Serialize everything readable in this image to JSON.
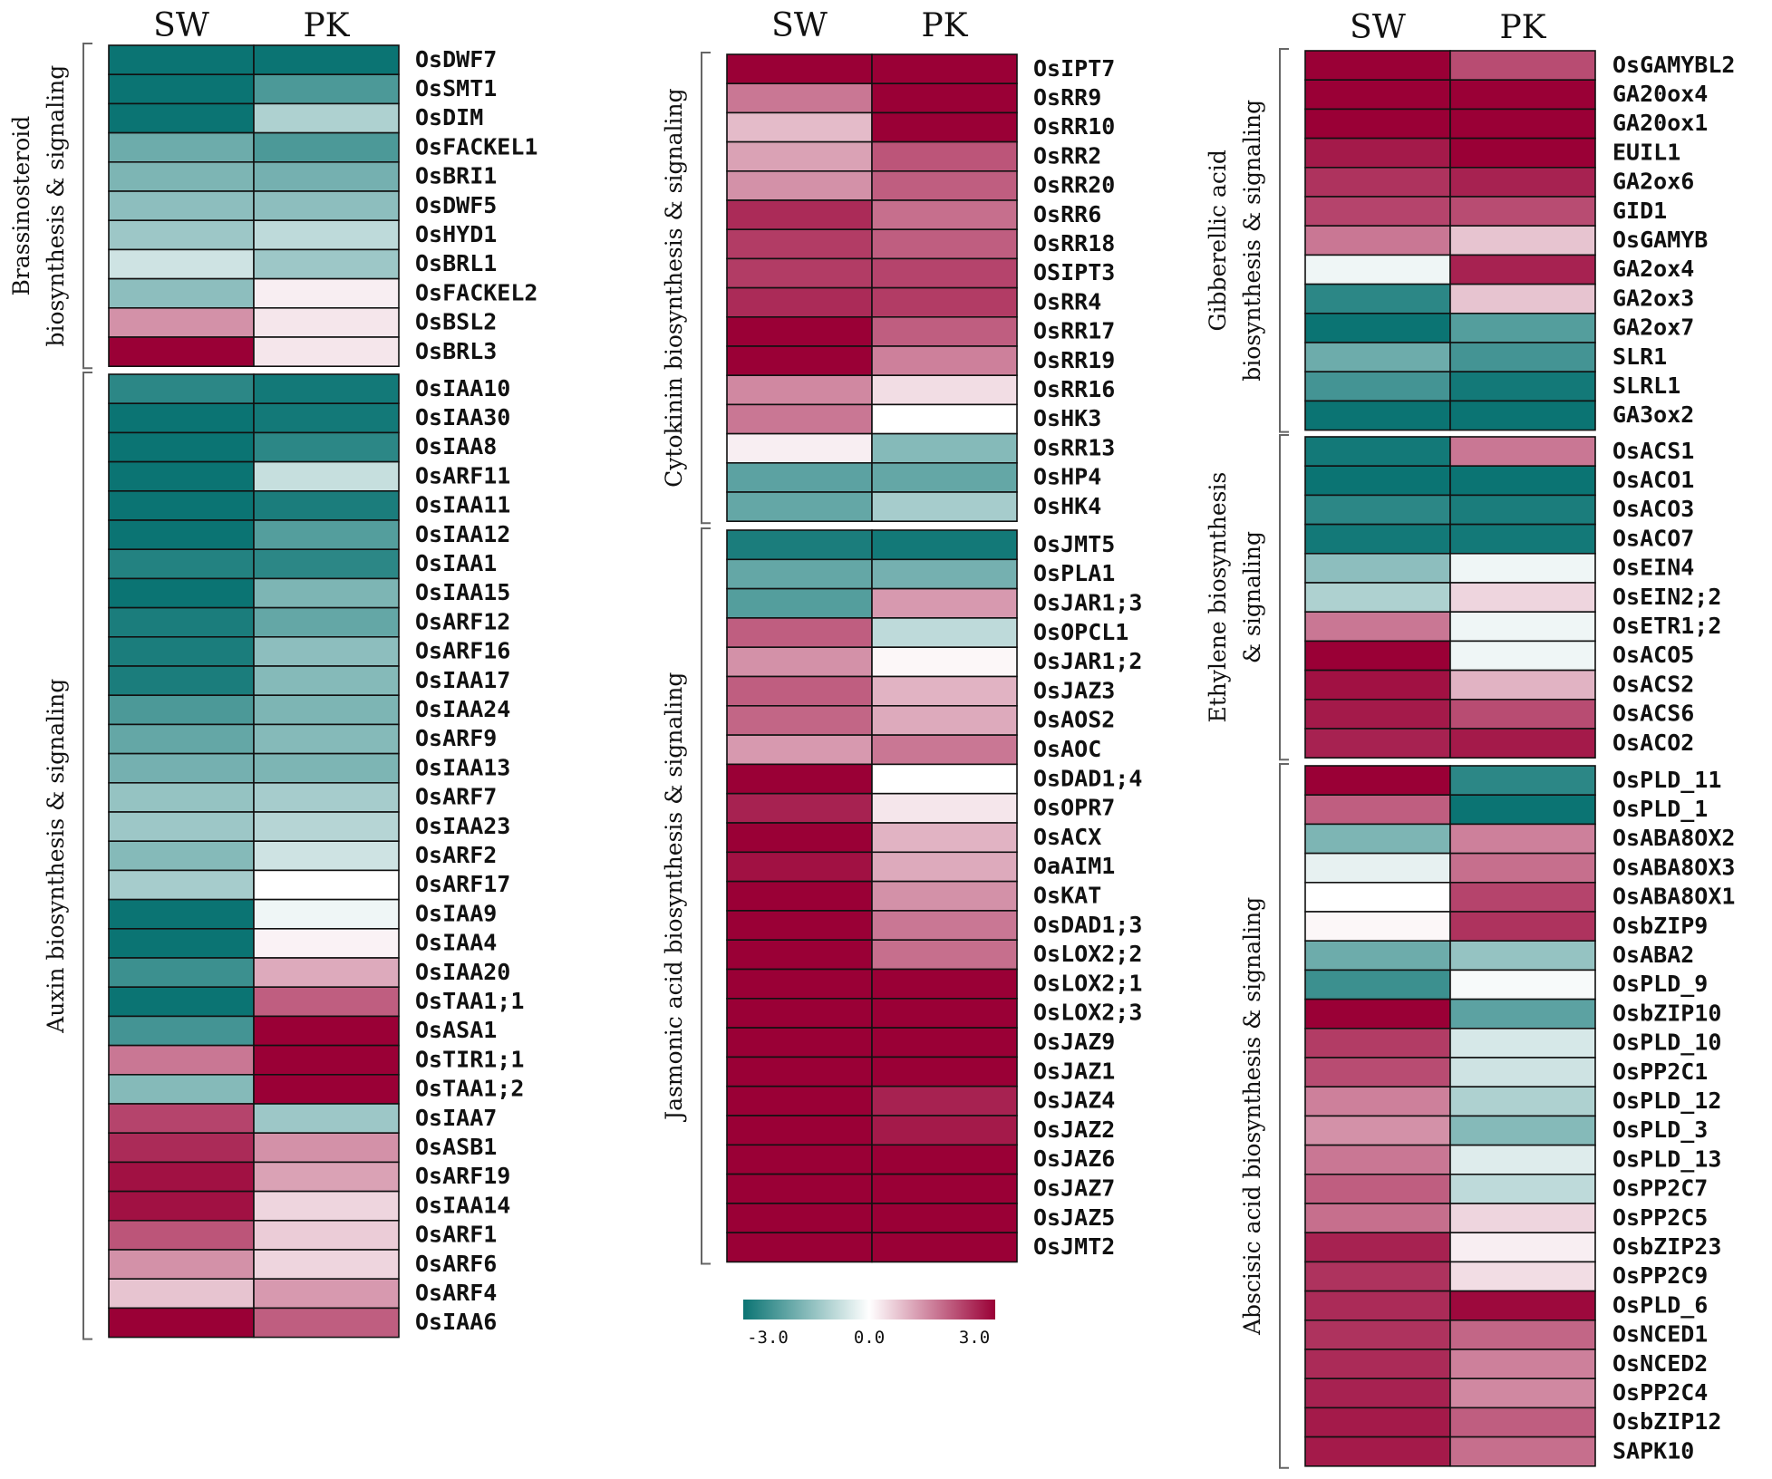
{
  "chart_data": {
    "type": "heatmap",
    "columns": [
      "SW",
      "PK"
    ],
    "color_scale": {
      "min": -3.0,
      "max": 3.0,
      "low": "#0b7473",
      "mid": "#ffffff",
      "high": "#9a0036",
      "ticks": [
        "-3.0",
        "0.0",
        "3.0"
      ]
    },
    "panels": [
      {
        "groups": [
          {
            "label_lines": [
              "Brassinosteroid",
              "biosynthesis & signaling"
            ],
            "rows": [
              {
                "gene": "OsDWF7",
                "SW": -3.0,
                "PK": -3.0
              },
              {
                "gene": "OsSMT1",
                "SW": -3.0,
                "PK": -2.2
              },
              {
                "gene": "OsDIM",
                "SW": -3.0,
                "PK": -1.0
              },
              {
                "gene": "OsFACKEL1",
                "SW": -1.8,
                "PK": -2.2
              },
              {
                "gene": "OsBRI1",
                "SW": -1.6,
                "PK": -1.7
              },
              {
                "gene": "OsDWF5",
                "SW": -1.4,
                "PK": -1.4
              },
              {
                "gene": "OsHYD1",
                "SW": -1.2,
                "PK": -0.8
              },
              {
                "gene": "OsBRL1",
                "SW": -0.6,
                "PK": -1.2
              },
              {
                "gene": "OsFACKEL2",
                "SW": -1.4,
                "PK": 0.2
              },
              {
                "gene": "OsBSL2",
                "SW": 1.3,
                "PK": 0.3
              },
              {
                "gene": "OsBRL3",
                "SW": 3.0,
                "PK": 0.3
              }
            ]
          },
          {
            "label_lines": [
              "Auxin biosynthesis & signaling"
            ],
            "rows": [
              {
                "gene": "OsIAA10",
                "SW": -2.6,
                "PK": -2.9
              },
              {
                "gene": "OsIAA30",
                "SW": -3.0,
                "PK": -2.9
              },
              {
                "gene": "OsIAA8",
                "SW": -3.0,
                "PK": -2.6
              },
              {
                "gene": "OsARF11",
                "SW": -3.0,
                "PK": -0.7
              },
              {
                "gene": "OsIAA11",
                "SW": -3.0,
                "PK": -2.8
              },
              {
                "gene": "OsIAA12",
                "SW": -3.0,
                "PK": -2.1
              },
              {
                "gene": "OsIAA1",
                "SW": -2.7,
                "PK": -2.6
              },
              {
                "gene": "OsIAA15",
                "SW": -3.0,
                "PK": -1.6
              },
              {
                "gene": "OsARF12",
                "SW": -2.8,
                "PK": -1.9
              },
              {
                "gene": "OsARF16",
                "SW": -2.8,
                "PK": -1.4
              },
              {
                "gene": "OsIAA17",
                "SW": -2.8,
                "PK": -1.5
              },
              {
                "gene": "OsIAA24",
                "SW": -2.2,
                "PK": -1.6
              },
              {
                "gene": "OsARF9",
                "SW": -1.9,
                "PK": -1.5
              },
              {
                "gene": "OsIAA13",
                "SW": -1.7,
                "PK": -1.6
              },
              {
                "gene": "OsARF7",
                "SW": -1.3,
                "PK": -1.1
              },
              {
                "gene": "OsIAA23",
                "SW": -1.2,
                "PK": -0.9
              },
              {
                "gene": "OsARF2",
                "SW": -1.5,
                "PK": -0.6
              },
              {
                "gene": "OsARF17",
                "SW": -1.1,
                "PK": 0.0
              },
              {
                "gene": "OsIAA9",
                "SW": -3.0,
                "PK": -0.2
              },
              {
                "gene": "OsIAA4",
                "SW": -3.0,
                "PK": 0.15
              },
              {
                "gene": "OsIAA20",
                "SW": -2.4,
                "PK": 1.0
              },
              {
                "gene": "OsTAA1;1",
                "SW": -3.0,
                "PK": 1.9
              },
              {
                "gene": "OsASA1",
                "SW": -2.3,
                "PK": 3.0
              },
              {
                "gene": "OsTIR1;1",
                "SW": 1.6,
                "PK": 3.0
              },
              {
                "gene": "OsTAA1;2",
                "SW": -1.5,
                "PK": 3.0
              },
              {
                "gene": "OsIAA7",
                "SW": 2.2,
                "PK": -1.2
              },
              {
                "gene": "OsASB1",
                "SW": 2.5,
                "PK": 1.3
              },
              {
                "gene": "OsARF19",
                "SW": 2.8,
                "PK": 1.1
              },
              {
                "gene": "OsIAA14",
                "SW": 2.8,
                "PK": 0.5
              },
              {
                "gene": "OsARF1",
                "SW": 2.0,
                "PK": 0.6
              },
              {
                "gene": "OsARF6",
                "SW": 1.3,
                "PK": 0.5
              },
              {
                "gene": "OsARF4",
                "SW": 0.7,
                "PK": 1.2
              },
              {
                "gene": "OsIAA6",
                "SW": 3.0,
                "PK": 1.9
              }
            ]
          }
        ]
      },
      {
        "groups": [
          {
            "label_lines": [
              "Cytokinin biosynthesis & signaling"
            ],
            "rows": [
              {
                "gene": "OsIPT7",
                "SW": 3.0,
                "PK": 3.0
              },
              {
                "gene": "OsRR9",
                "SW": 1.6,
                "PK": 3.0
              },
              {
                "gene": "OsRR10",
                "SW": 0.8,
                "PK": 3.0
              },
              {
                "gene": "OsRR2",
                "SW": 1.1,
                "PK": 2.0
              },
              {
                "gene": "OsRR20",
                "SW": 1.3,
                "PK": 1.9
              },
              {
                "gene": "OsRR6",
                "SW": 2.5,
                "PK": 1.7
              },
              {
                "gene": "OsRR18",
                "SW": 2.3,
                "PK": 1.9
              },
              {
                "gene": "OSIPT3",
                "SW": 2.3,
                "PK": 2.2
              },
              {
                "gene": "OsRR4",
                "SW": 2.5,
                "PK": 2.3
              },
              {
                "gene": "OsRR17",
                "SW": 3.0,
                "PK": 1.9
              },
              {
                "gene": "OsRR19",
                "SW": 3.0,
                "PK": 1.5
              },
              {
                "gene": "OsRR16",
                "SW": 1.4,
                "PK": 0.4
              },
              {
                "gene": "OsHK3",
                "SW": 1.6,
                "PK": 0.0
              },
              {
                "gene": "OsRR13",
                "SW": 0.2,
                "PK": -1.5
              },
              {
                "gene": "OsHP4",
                "SW": -2.0,
                "PK": -1.9
              },
              {
                "gene": "OsHK4",
                "SW": -1.9,
                "PK": -1.1
              }
            ]
          },
          {
            "label_lines": [
              "Jasmonic acid biosynthesis & signaling"
            ],
            "rows": [
              {
                "gene": "OsJMT5",
                "SW": -2.8,
                "PK": -2.9
              },
              {
                "gene": "OsPLA1",
                "SW": -1.9,
                "PK": -1.7
              },
              {
                "gene": "OsJAR1;3",
                "SW": -2.1,
                "PK": 1.2
              },
              {
                "gene": "OsOPCL1",
                "SW": 1.9,
                "PK": -0.8
              },
              {
                "gene": "OsJAR1;2",
                "SW": 1.3,
                "PK": 0.1
              },
              {
                "gene": "OsJAZ3",
                "SW": 1.9,
                "PK": 0.9
              },
              {
                "gene": "OsAOS2",
                "SW": 1.8,
                "PK": 1.0
              },
              {
                "gene": "OsAOC",
                "SW": 1.2,
                "PK": 1.6
              },
              {
                "gene": "OsDAD1;4",
                "SW": 3.0,
                "PK": 0.0
              },
              {
                "gene": "OsOPR7",
                "SW": 2.6,
                "PK": 0.3
              },
              {
                "gene": "OsACX",
                "SW": 3.0,
                "PK": 0.9
              },
              {
                "gene": "OaAIM1",
                "SW": 2.8,
                "PK": 1.0
              },
              {
                "gene": "OsKAT",
                "SW": 3.0,
                "PK": 1.3
              },
              {
                "gene": "OsDAD1;3",
                "SW": 3.0,
                "PK": 1.6
              },
              {
                "gene": "OsLOX2;2",
                "SW": 3.0,
                "PK": 1.7
              },
              {
                "gene": "OsLOX2;1",
                "SW": 3.0,
                "PK": 3.0
              },
              {
                "gene": "OsLOX2;3",
                "SW": 3.0,
                "PK": 3.0
              },
              {
                "gene": "OsJAZ9",
                "SW": 3.0,
                "PK": 3.0
              },
              {
                "gene": "OsJAZ1",
                "SW": 3.0,
                "PK": 3.0
              },
              {
                "gene": "OsJAZ4",
                "SW": 3.0,
                "PK": 2.6
              },
              {
                "gene": "OsJAZ2",
                "SW": 3.0,
                "PK": 2.7
              },
              {
                "gene": "OsJAZ6",
                "SW": 3.0,
                "PK": 3.0
              },
              {
                "gene": "OsJAZ7",
                "SW": 3.0,
                "PK": 3.0
              },
              {
                "gene": "OsJAZ5",
                "SW": 3.0,
                "PK": 3.0
              },
              {
                "gene": "OsJMT2",
                "SW": 3.0,
                "PK": 3.0
              }
            ]
          }
        ]
      },
      {
        "groups": [
          {
            "label_lines": [
              "Gibberellic acid",
              "biosynthesis & signaling"
            ],
            "rows": [
              {
                "gene": "OsGAMYBL2",
                "SW": 3.0,
                "PK": 2.1
              },
              {
                "gene": "GA20ox4",
                "SW": 3.0,
                "PK": 3.0
              },
              {
                "gene": "GA20ox1",
                "SW": 3.0,
                "PK": 3.0
              },
              {
                "gene": "EUIL1",
                "SW": 2.7,
                "PK": 3.0
              },
              {
                "gene": "GA2ox6",
                "SW": 2.4,
                "PK": 2.6
              },
              {
                "gene": "GID1",
                "SW": 2.2,
                "PK": 2.1
              },
              {
                "gene": "OsGAMYB",
                "SW": 1.6,
                "PK": 0.7
              },
              {
                "gene": "GA2ox4",
                "SW": -0.2,
                "PK": 2.6
              },
              {
                "gene": "GA2ox3",
                "SW": -2.6,
                "PK": 0.7
              },
              {
                "gene": "GA2ox7",
                "SW": -3.0,
                "PK": -2.1
              },
              {
                "gene": "SLR1",
                "SW": -1.8,
                "PK": -2.3
              },
              {
                "gene": "SLRL1",
                "SW": -2.3,
                "PK": -2.9
              },
              {
                "gene": "GA3ox2",
                "SW": -3.0,
                "PK": -3.0
              }
            ]
          },
          {
            "label_lines": [
              "Ethylene biosynthesis",
              "& signaling"
            ],
            "rows": [
              {
                "gene": "OsACS1",
                "SW": -2.9,
                "PK": 1.6
              },
              {
                "gene": "OsACO1",
                "SW": -3.0,
                "PK": -3.0
              },
              {
                "gene": "OsACO3",
                "SW": -2.6,
                "PK": -2.8
              },
              {
                "gene": "OsACO7",
                "SW": -2.9,
                "PK": -2.9
              },
              {
                "gene": "OsEIN4",
                "SW": -1.4,
                "PK": -0.2
              },
              {
                "gene": "OsEIN2;2",
                "SW": -1.0,
                "PK": 0.5
              },
              {
                "gene": "OsETR1;2",
                "SW": 1.6,
                "PK": -0.2
              },
              {
                "gene": "OsACO5",
                "SW": 3.0,
                "PK": -0.2
              },
              {
                "gene": "OsACS2",
                "SW": 2.8,
                "PK": 0.9
              },
              {
                "gene": "OsACS6",
                "SW": 2.7,
                "PK": 2.1
              },
              {
                "gene": "OsACO2",
                "SW": 2.6,
                "PK": 2.7
              }
            ]
          },
          {
            "label_lines": [
              "Abscisic acid biosynthesis & signaling"
            ],
            "rows": [
              {
                "gene": "OsPLD_11",
                "SW": 3.0,
                "PK": -2.6
              },
              {
                "gene": "OsPLD_1",
                "SW": 1.9,
                "PK": -3.0
              },
              {
                "gene": "OsABA8OX2",
                "SW": -1.6,
                "PK": 1.5
              },
              {
                "gene": "OsABA8OX3",
                "SW": -0.3,
                "PK": 1.7
              },
              {
                "gene": "OsABA8OX1",
                "SW": 0.0,
                "PK": 2.2
              },
              {
                "gene": "OsbZIP9",
                "SW": 0.1,
                "PK": 2.4
              },
              {
                "gene": "OsABA2",
                "SW": -1.8,
                "PK": -1.3
              },
              {
                "gene": "OsPLD_9",
                "SW": -2.4,
                "PK": -0.1
              },
              {
                "gene": "OsbZIP10",
                "SW": 3.0,
                "PK": -2.0
              },
              {
                "gene": "OsPLD_10",
                "SW": 2.3,
                "PK": -0.5
              },
              {
                "gene": "OsPP2C1",
                "SW": 2.1,
                "PK": -0.6
              },
              {
                "gene": "OsPLD_12",
                "SW": 1.5,
                "PK": -1.0
              },
              {
                "gene": "OsPLD_3",
                "SW": 1.3,
                "PK": -1.5
              },
              {
                "gene": "OsPLD_13",
                "SW": 1.6,
                "PK": -0.4
              },
              {
                "gene": "OsPP2C7",
                "SW": 1.9,
                "PK": -0.8
              },
              {
                "gene": "OsPP2C5",
                "SW": 1.7,
                "PK": 0.5
              },
              {
                "gene": "OsbZIP23",
                "SW": 2.6,
                "PK": 0.2
              },
              {
                "gene": "OsPP2C9",
                "SW": 2.4,
                "PK": 0.4
              },
              {
                "gene": "OsPLD_6",
                "SW": 2.5,
                "PK": 2.9
              },
              {
                "gene": "OsNCED1",
                "SW": 2.4,
                "PK": 1.8
              },
              {
                "gene": "OsNCED2",
                "SW": 2.5,
                "PK": 1.5
              },
              {
                "gene": "OsPP2C4",
                "SW": 2.6,
                "PK": 1.4
              },
              {
                "gene": "OsbZIP12",
                "SW": 2.7,
                "PK": 1.9
              },
              {
                "gene": "SAPK10",
                "SW": 2.7,
                "PK": 1.7
              }
            ]
          }
        ]
      }
    ]
  }
}
